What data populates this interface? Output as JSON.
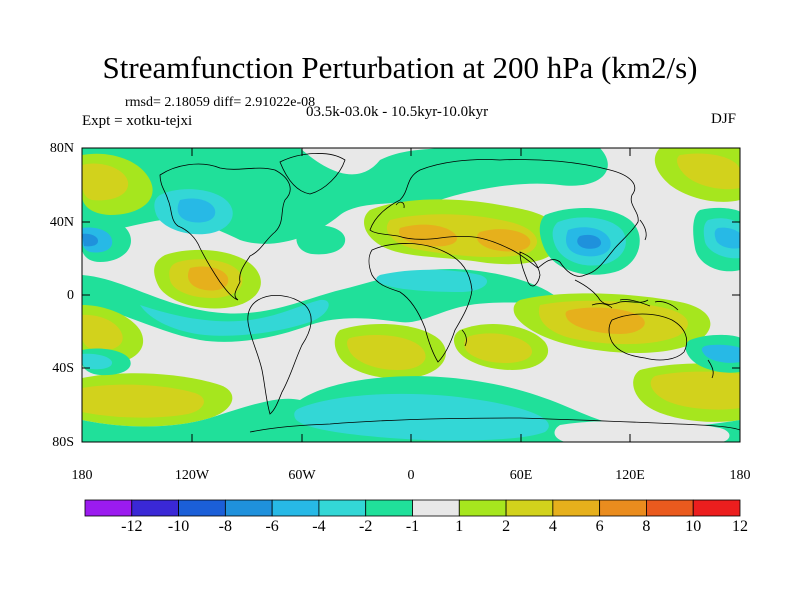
{
  "title": "Streamfunction Perturbation at 200 hPa (km2/s)",
  "subtitle_left_top": "rmsd= 2.18059 diff= 2.91022e-08",
  "subtitle_left": "Expt = xotku-tejxi",
  "subtitle_center": "03.5k-03.0k - 10.5kyr-10.0kyr",
  "subtitle_right": "DJF",
  "axes": {
    "y_ticks": [
      "80N",
      "40N",
      "0",
      "40S",
      "80S"
    ],
    "x_ticks": [
      "180",
      "120W",
      "60W",
      "0",
      "60E",
      "120E",
      "180"
    ]
  },
  "colorbar": {
    "labels": [
      "-12",
      "-10",
      "-8",
      "-6",
      "-4",
      "-2",
      "-1",
      "1",
      "2",
      "4",
      "6",
      "8",
      "10",
      "12"
    ],
    "colors": [
      "#9b1bef",
      "#3a28d6",
      "#1b5fd8",
      "#1f91dc",
      "#27b9e6",
      "#33d7d6",
      "#20e09a",
      "#e8e8e8",
      "#a6e61e",
      "#d2d21c",
      "#e6b01c",
      "#ea8c1e",
      "#ea5a1e",
      "#ec1e1e"
    ]
  },
  "map_colors": {
    "neutral": "#e8e8e8",
    "neg1": "#20e09a",
    "neg2": "#33d7d6",
    "neg4": "#27b9e6",
    "neg6": "#1f91dc",
    "pos1": "#a6e61e",
    "pos2": "#d2d21c",
    "pos4": "#e6b01c",
    "pos6": "#ea8c1e"
  }
}
